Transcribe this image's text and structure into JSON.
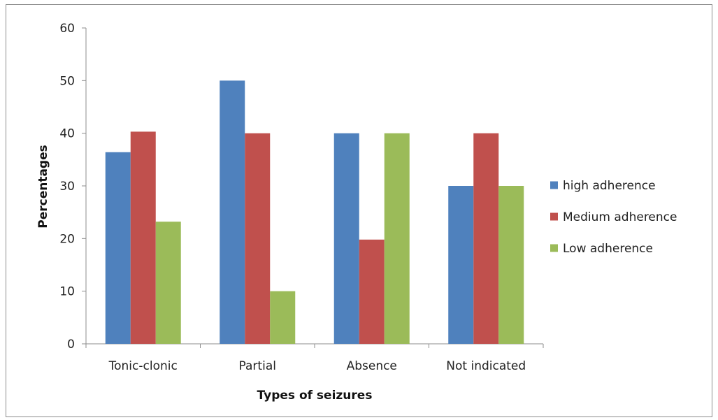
{
  "chart_data": {
    "type": "bar",
    "title": "",
    "xlabel": "Types of seizures",
    "ylabel": "Percentages",
    "categories": [
      "Tonic-clonic",
      "Partial",
      "Absence",
      "Not indicated"
    ],
    "ylim": [
      0,
      60
    ],
    "yticks": [
      "0",
      "10",
      "20",
      "30",
      "40",
      "50",
      "60"
    ],
    "grid": false,
    "legend_position": "right",
    "series": [
      {
        "name": "high adherence",
        "color": "#4f81bd",
        "values": [
          36.4,
          50,
          40,
          30
        ]
      },
      {
        "name": "Medium adherence",
        "color": "#c0504d",
        "values": [
          40.3,
          40,
          19.8,
          40
        ]
      },
      {
        "name": "Low adherence",
        "color": "#9bbb59",
        "values": [
          23.2,
          10,
          40,
          30
        ]
      }
    ]
  }
}
